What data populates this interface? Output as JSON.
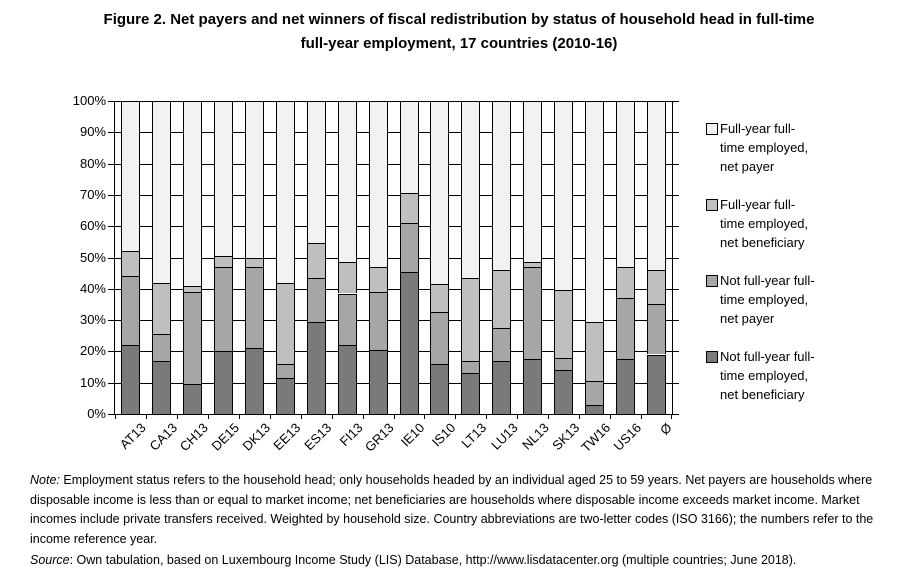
{
  "title": {
    "line1": "Figure 2. Net payers and net winners of fiscal redistribution by status of household head in full-time",
    "line2": "full-year employment, 17 countries (2010-16)"
  },
  "y_axis": {
    "tick_labels": [
      "100%",
      "90%",
      "80%",
      "70%",
      "60%",
      "50%",
      "40%",
      "30%",
      "20%",
      "10%",
      "0%"
    ]
  },
  "legend": {
    "items": [
      {
        "label": "Full-year full-\ntime employed,\nnet payer",
        "color": "#f2f2f2"
      },
      {
        "label": "Full-year full-\ntime employed,\nnet beneficiary",
        "color": "#bfbfbf"
      },
      {
        "label": "Not full-year full-\ntime employed,\nnet payer",
        "color": "#a6a6a6"
      },
      {
        "label": "Not full-year full-\ntime employed,\nnet beneficiary",
        "color": "#7a7a7a"
      }
    ]
  },
  "chart_data": {
    "type": "bar",
    "stacked": true,
    "title": "Figure 2. Net payers and net winners of fiscal redistribution by status of household head in full-time full-year employment, 17 countries (2010-16)",
    "categories": [
      "AT13",
      "CA13",
      "CH13",
      "DE15",
      "DK13",
      "EE13",
      "ES13",
      "FI13",
      "GR13",
      "IE10",
      "IS10",
      "LT13",
      "LU13",
      "NL13",
      "SK13",
      "TW16",
      "US16",
      "Ø"
    ],
    "series": [
      {
        "name": "Not full-year full-time employed, net beneficiary",
        "color": "#7a7a7a",
        "values": [
          22,
          17,
          9.5,
          20,
          21,
          11.5,
          29.5,
          22,
          20.5,
          45.5,
          16,
          13,
          17,
          17.5,
          14,
          3,
          17.5,
          19
        ]
      },
      {
        "name": "Not full-year full-time employed, net payer",
        "color": "#a6a6a6",
        "values": [
          22,
          8.5,
          29.5,
          27,
          26,
          4.5,
          14,
          16.5,
          18.5,
          15.5,
          16.5,
          4,
          10.5,
          29.5,
          4,
          7.5,
          19.5,
          16
        ]
      },
      {
        "name": "Full-year full-time employed, net beneficiary",
        "color": "#bfbfbf",
        "values": [
          8,
          16.5,
          2,
          3.5,
          3,
          26,
          11,
          10,
          8,
          9.5,
          9,
          26.5,
          18.5,
          1.5,
          21.5,
          19,
          10,
          11
        ]
      },
      {
        "name": "Full-year full-time employed, net payer",
        "color": "#f2f2f2",
        "values": [
          48,
          58,
          59,
          49.5,
          50,
          58,
          45.5,
          51.5,
          53,
          29.5,
          58.5,
          56.5,
          54,
          51.5,
          60.5,
          70.5,
          53,
          54
        ]
      }
    ],
    "xlabel": "",
    "ylabel": "",
    "ylim": [
      0,
      100
    ],
    "ytick_step": 10,
    "value_format": "percent",
    "grid": true,
    "legend_position": "right"
  },
  "notes": {
    "note_label": "Note:",
    "note_text": "Employment status refers to the household head; only households headed by an individual aged 25 to 59 years. Net payers are households where disposable income is less than or equal to market income; net beneficiaries are households where disposable income exceeds market income. Market incomes include private transfers received. Weighted by household size. Country abbreviations are two-letter codes (ISO 3166); the numbers refer to the income reference year.",
    "source_label": "Source",
    "source_text": ": Own tabulation, based on Luxembourg Income Study (LIS) Database, http://www.lisdatacenter.org (multiple countries; June 2018)."
  }
}
